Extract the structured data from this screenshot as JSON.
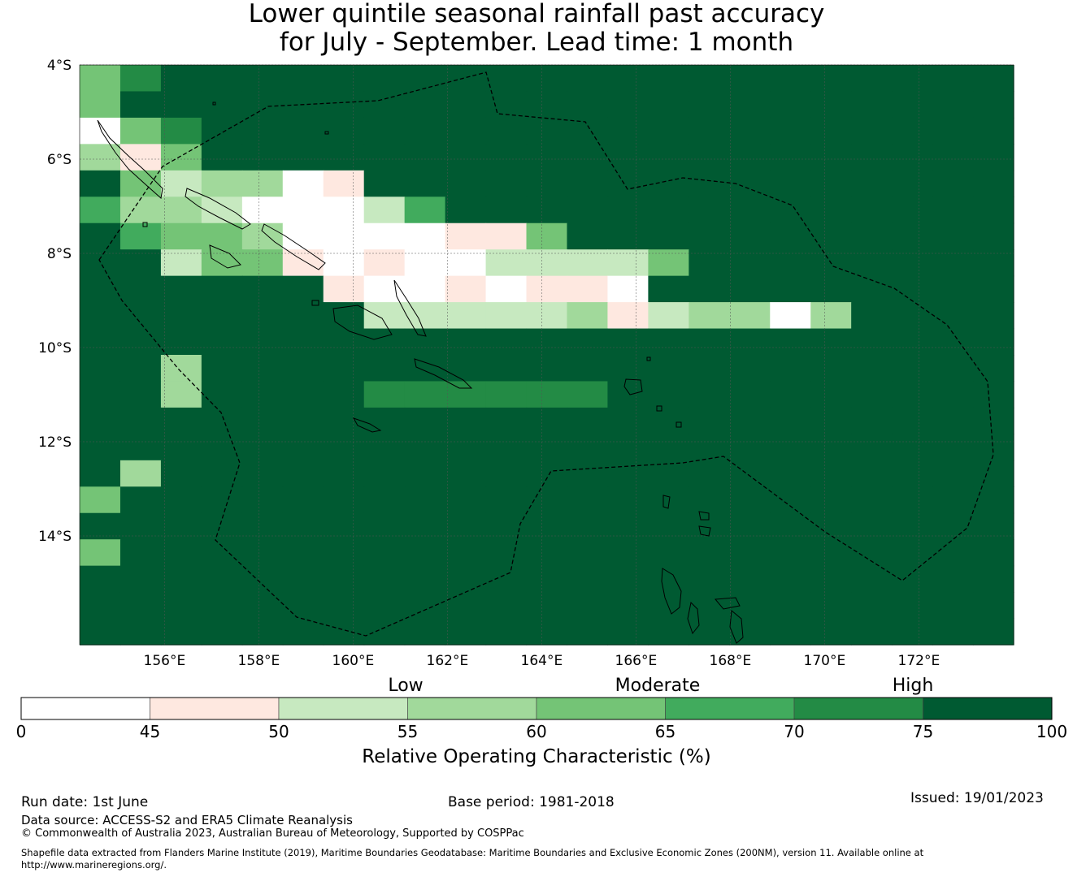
{
  "title": {
    "line1": "Lower quintile seasonal rainfall past accuracy",
    "line2": "for July - September. Lead time: 1 month"
  },
  "map": {
    "lat_labels": [
      "4°S",
      "6°S",
      "8°S",
      "10°S",
      "12°S",
      "14°S"
    ],
    "lon_labels": [
      "156°E",
      "158°E",
      "160°E",
      "162°E",
      "164°E",
      "166°E",
      "168°E",
      "170°E",
      "172°E"
    ],
    "extent": {
      "lon_min": 154.2,
      "lon_max": 174.0,
      "lat_north": -4.0,
      "lat_south": -16.3
    },
    "grid_cell_deg": 0.83,
    "roc_class_grid": [
      "46777777999999999999999",
      "47799999999999999988899",
      "04699999999999999999999",
      "31479999999999999999999",
      "94233019999999999999999",
      "53320002599989999999999",
      "95443000011479999999999",
      "99244101002222489999999",
      "99999910010110799999999",
      "98999992222231233038999",
      "99999999999999999999999",
      "99399999999999999999999",
      "99389996666669999999999",
      "99999999999999999999999",
      "99999999999999999999999",
      "93999999999999999999999",
      "47799999999999999999999",
      "99999999999999999999999",
      "49999999999999999999999",
      "99999999999999999999999",
      "99999999999999999999999",
      "99999999999999999999999"
    ]
  },
  "colorbar": {
    "class_colors": [
      "#ffffff",
      "#fee8e0",
      "#c7e9c0",
      "#a1d99b",
      "#74c476",
      "#41ab5d",
      "#238b45",
      "#005a32"
    ],
    "ticks": [
      "0",
      "45",
      "50",
      "55",
      "60",
      "65",
      "70",
      "75",
      "100"
    ],
    "categories": [
      "Low",
      "Moderate",
      "High"
    ],
    "title": "Relative Operating Characteristic (%)"
  },
  "footer": {
    "run_date": "Run date: 1st June",
    "base_period": "Base period: 1981-2018",
    "issued": "Issued: 19/01/2023",
    "data_source": "Data source: ACCESS-S2 and ERA5 Climate Reanalysis",
    "copyright": "© Commonwealth of Australia 2023, Australian Bureau of Meteorology, Supported by COSPPac",
    "shapefile_line1": "Shapefile data extracted from Flanders Marine Institute (2019), Maritime Boundaries Geodatabase: Maritime Boundaries and Exclusive Economic Zones (200NM), version 11. Available online at",
    "shapefile_line2": "http://www.marineregions.org/."
  }
}
